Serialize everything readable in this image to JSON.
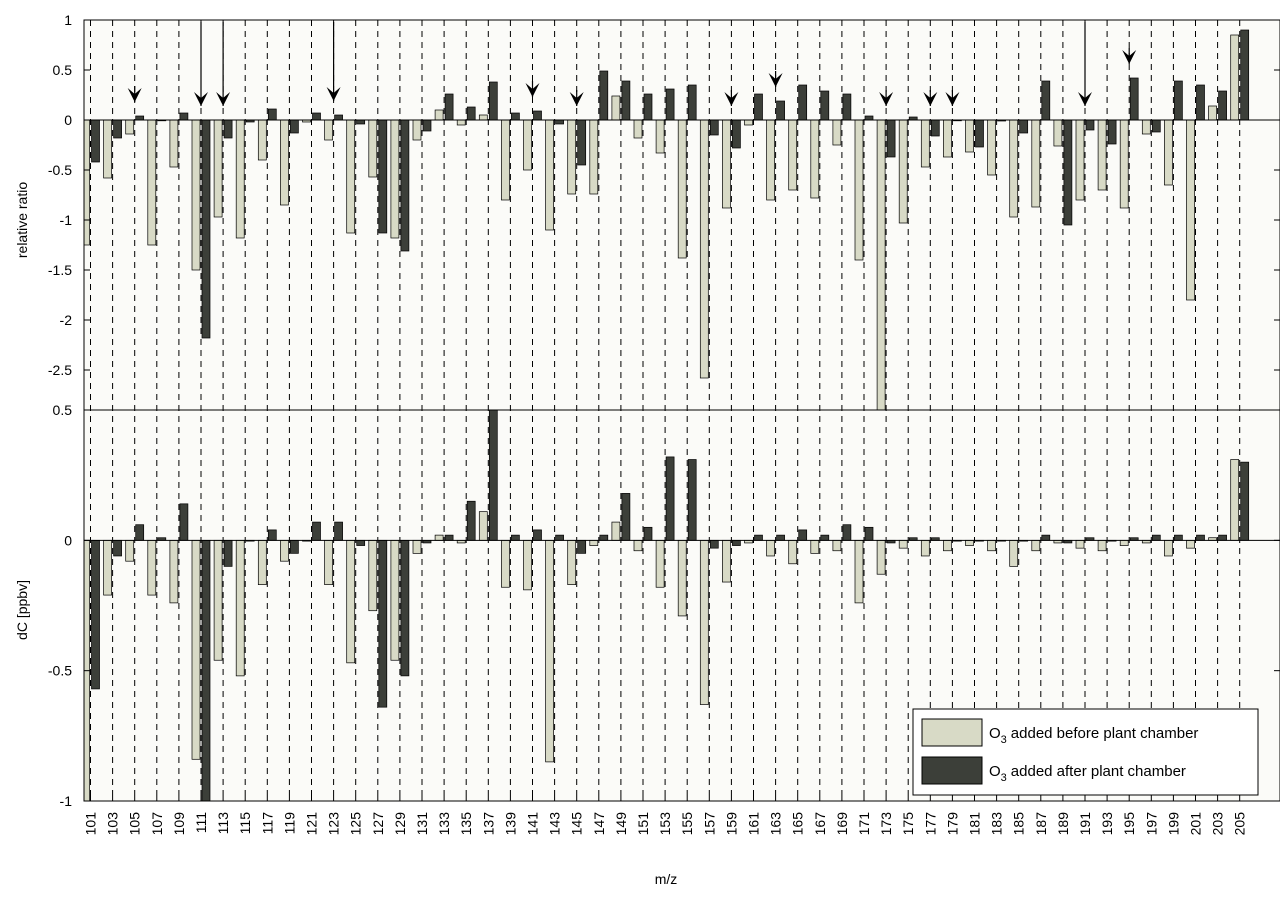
{
  "chart_data": [
    {
      "type": "bar",
      "panel": "top",
      "ylabel": "relative ratio",
      "ylim": [
        -2.9,
        1
      ],
      "yticks": [
        "1",
        "0.5",
        "0",
        "-0.5",
        "-1",
        "-1.5",
        "-2",
        "-2.5"
      ],
      "grid": "vertical dashed",
      "arrow_markers_at": [
        105,
        111,
        113,
        123,
        141,
        145,
        159,
        163,
        173,
        177,
        179,
        191,
        195
      ],
      "series": [
        {
          "name": "O3 added before plant chamber",
          "color": "#d8dac6",
          "values": [
            -1.25,
            -0.58,
            -0.14,
            -1.25,
            -0.47,
            -1.5,
            -0.97,
            -1.18,
            -0.4,
            -0.85,
            -0.02,
            -0.2,
            -1.13,
            -0.57,
            -1.18,
            -0.2,
            0.1,
            -0.05,
            0.05,
            -0.8,
            -0.5,
            -1.1,
            -0.74,
            -0.74,
            0.24,
            -0.18,
            -0.33,
            -1.38,
            -2.58,
            -0.88,
            -0.05,
            -0.8,
            -0.7,
            -0.78,
            -0.25,
            -1.4,
            -2.9,
            -1.03,
            -0.47,
            -0.37,
            -0.32,
            -0.55,
            -0.97,
            -0.87,
            -0.26,
            -0.8,
            -0.7,
            -0.88,
            -0.14,
            -0.65,
            -1.8,
            0.14,
            0.85
          ]
        },
        {
          "name": "O3 added after plant chamber",
          "color": "#3c3f39",
          "values": [
            -0.42,
            -0.18,
            0.04,
            0,
            0.07,
            -2.18,
            -0.18,
            -0.02,
            0.11,
            -0.13,
            0.07,
            0.05,
            -0.04,
            -1.13,
            -1.31,
            -0.11,
            0.26,
            0.13,
            0.38,
            0.07,
            0.09,
            -0.04,
            -0.45,
            0.49,
            0.39,
            0.26,
            0.31,
            0.35,
            -0.15,
            -0.28,
            0.26,
            0.19,
            0.35,
            0.29,
            0.26,
            0.04,
            -0.37,
            0.03,
            -0.16,
            0,
            -0.27,
            -0.01,
            -0.13,
            0.39,
            -1.05,
            -0.1,
            -0.24,
            0.42,
            -0.12,
            0.39,
            0.35,
            0.29,
            0.9
          ]
        }
      ]
    },
    {
      "type": "bar",
      "panel": "bottom",
      "xlabel": "m/z",
      "ylabel": "dC [ppbv]",
      "ylim": [
        -1,
        0.5
      ],
      "yticks": [
        "0.5",
        "0",
        "-0.5",
        "-1"
      ],
      "grid": "vertical dashed",
      "categories": [
        "101",
        "103",
        "105",
        "107",
        "109",
        "111",
        "113",
        "115",
        "117",
        "119",
        "121",
        "123",
        "125",
        "127",
        "129",
        "131",
        "133",
        "135",
        "137",
        "139",
        "141",
        "143",
        "145",
        "147",
        "149",
        "151",
        "153",
        "155",
        "157",
        "159",
        "161",
        "163",
        "165",
        "167",
        "169",
        "171",
        "173",
        "175",
        "177",
        "179",
        "181",
        "183",
        "185",
        "187",
        "189",
        "191",
        "193",
        "195",
        "197",
        "199",
        "201",
        "203",
        "205"
      ],
      "series": [
        {
          "name": "O3 added before plant chamber",
          "color": "#d8dac6",
          "values": [
            -1.0,
            -0.21,
            -0.08,
            -0.21,
            -0.24,
            -0.84,
            -0.46,
            -0.52,
            -0.17,
            -0.08,
            0,
            -0.17,
            -0.47,
            -0.27,
            -0.46,
            -0.05,
            0.02,
            -0.01,
            0.11,
            -0.18,
            -0.19,
            -0.85,
            -0.17,
            -0.02,
            0.07,
            -0.04,
            -0.18,
            -0.29,
            -0.63,
            -0.16,
            -0.01,
            -0.06,
            -0.09,
            -0.05,
            -0.04,
            -0.24,
            -0.13,
            -0.03,
            -0.06,
            -0.04,
            -0.02,
            -0.04,
            -0.1,
            -0.04,
            -0.01,
            -0.03,
            -0.04,
            -0.02,
            -0.01,
            -0.06,
            -0.03,
            0.01,
            0.31
          ]
        },
        {
          "name": "O3 added after plant chamber",
          "color": "#3c3f39",
          "values": [
            -0.57,
            -0.06,
            0.06,
            0.01,
            0.14,
            -1.0,
            -0.1,
            0,
            0.04,
            -0.05,
            0.07,
            0.07,
            -0.02,
            -0.64,
            -0.52,
            -0.01,
            0.02,
            0.15,
            0.5,
            0.02,
            0.04,
            0.02,
            -0.05,
            0.02,
            0.18,
            0.05,
            0.32,
            0.31,
            -0.03,
            -0.02,
            0.02,
            0.02,
            0.04,
            0.02,
            0.06,
            0.05,
            -0.01,
            0.01,
            0.01,
            0,
            0,
            0,
            0,
            0.02,
            -0.01,
            0.01,
            0,
            0.01,
            0.02,
            0.02,
            0.02,
            0.02,
            0.3
          ]
        }
      ]
    }
  ],
  "legend": {
    "position": "bottom-right",
    "items": [
      {
        "prefix": "O",
        "sub": "3",
        "text": "added before plant chamber",
        "color": "#d8dac6"
      },
      {
        "prefix": "O",
        "sub": "3",
        "text": "added after plant chamber",
        "color": "#3c3f39"
      }
    ]
  }
}
